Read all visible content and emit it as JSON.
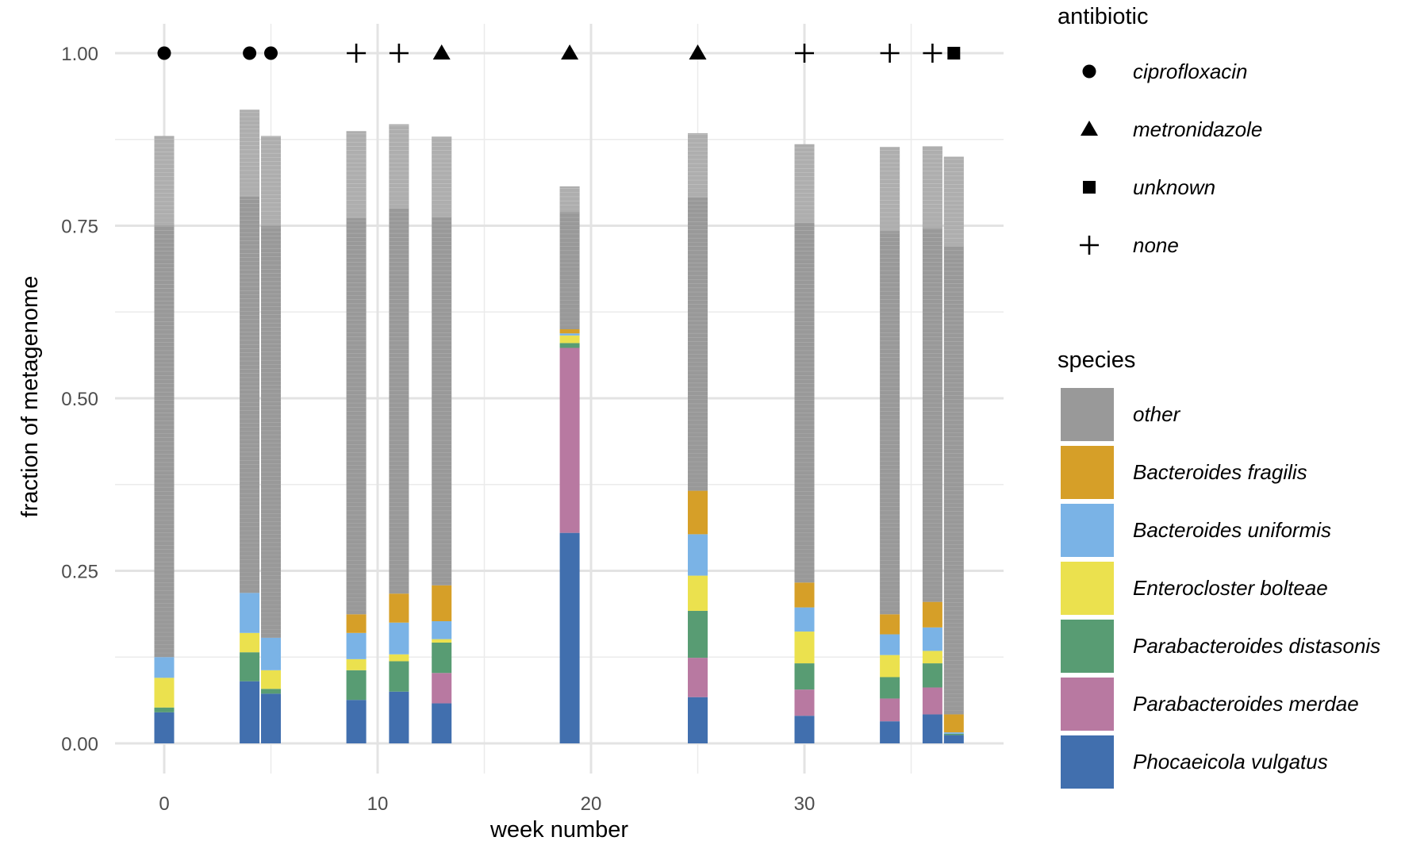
{
  "chart_data": {
    "type": "bar",
    "stacked": true,
    "xlabel": "week number",
    "ylabel": "fraction of metagenome",
    "x_ticks": [
      0,
      10,
      20,
      30
    ],
    "y_ticks": [
      "0.00",
      "0.25",
      "0.50",
      "0.75",
      "1.00"
    ],
    "xlim": [
      -2,
      39
    ],
    "ylim": [
      -0.05,
      1.05
    ],
    "grid": true,
    "legend_placement": "right",
    "stack_order": [
      "Phocaeicola vulgatus",
      "Parabacteroides merdae",
      "Parabacteroides distasonis",
      "Enterocloster bolteae",
      "Bacteroides uniformis",
      "Bacteroides fragilis",
      "other"
    ],
    "samples": [
      {
        "week": 0,
        "antibiotic": "ciprofloxacin",
        "values": [
          0.045,
          0.0,
          0.007,
          0.043,
          0.03,
          0.0,
          0.755
        ]
      },
      {
        "week": 4,
        "antibiotic": "ciprofloxacin",
        "values": [
          0.09,
          0.0,
          0.042,
          0.028,
          0.058,
          0.0,
          0.7
        ]
      },
      {
        "week": 5,
        "antibiotic": "ciprofloxacin",
        "values": [
          0.072,
          0.0,
          0.007,
          0.027,
          0.047,
          0.0,
          0.727
        ]
      },
      {
        "week": 9,
        "antibiotic": "none",
        "values": [
          0.063,
          0.0,
          0.043,
          0.016,
          0.038,
          0.027,
          0.7
        ]
      },
      {
        "week": 11,
        "antibiotic": "none",
        "values": [
          0.075,
          0.0,
          0.044,
          0.01,
          0.046,
          0.042,
          0.68
        ]
      },
      {
        "week": 13,
        "antibiotic": "metronidazole",
        "values": [
          0.058,
          0.044,
          0.044,
          0.005,
          0.026,
          0.052,
          0.65
        ]
      },
      {
        "week": 19,
        "antibiotic": "metronidazole",
        "values": [
          0.305,
          0.268,
          0.007,
          0.011,
          0.003,
          0.006,
          0.207
        ]
      },
      {
        "week": 25,
        "antibiotic": "metronidazole",
        "values": [
          0.067,
          0.057,
          0.068,
          0.051,
          0.06,
          0.063,
          0.518
        ]
      },
      {
        "week": 30,
        "antibiotic": "none",
        "values": [
          0.04,
          0.038,
          0.038,
          0.046,
          0.035,
          0.036,
          0.635
        ]
      },
      {
        "week": 34,
        "antibiotic": "none",
        "values": [
          0.032,
          0.033,
          0.031,
          0.032,
          0.03,
          0.029,
          0.677
        ]
      },
      {
        "week": 36,
        "antibiotic": "none",
        "values": [
          0.042,
          0.039,
          0.035,
          0.018,
          0.034,
          0.037,
          0.66
        ]
      },
      {
        "week": 37,
        "antibiotic": "unknown",
        "values": [
          0.012,
          0.0,
          0.002,
          0.0,
          0.002,
          0.026,
          0.808
        ]
      }
    ],
    "legends": {
      "antibiotic": {
        "title": "antibiotic",
        "items": [
          {
            "label": "ciprofloxacin",
            "shape": "circle"
          },
          {
            "label": "metronidazole",
            "shape": "triangle"
          },
          {
            "label": "unknown",
            "shape": "square"
          },
          {
            "label": "none",
            "shape": "plus"
          }
        ]
      },
      "species": {
        "title": "species",
        "items": [
          {
            "label": "other",
            "color": "#999999"
          },
          {
            "label": "Bacteroides fragilis",
            "color": "#D69F28"
          },
          {
            "label": "Bacteroides uniformis",
            "color": "#7AB3E6"
          },
          {
            "label": "Enterocloster bolteae",
            "color": "#EBE14E"
          },
          {
            "label": "Parabacteroides distasonis",
            "color": "#589C73"
          },
          {
            "label": "Parabacteroides merdae",
            "color": "#B879A1"
          },
          {
            "label": "Phocaeicola vulgatus",
            "color": "#416FAE"
          }
        ]
      }
    },
    "colors": {
      "Phocaeicola vulgatus": "#416FAE",
      "Parabacteroides merdae": "#B879A1",
      "Parabacteroides distasonis": "#589C73",
      "Enterocloster bolteae": "#EBE14E",
      "Bacteroides uniformis": "#7AB3E6",
      "Bacteroides fragilis": "#D69F28",
      "other": "#999999"
    }
  }
}
